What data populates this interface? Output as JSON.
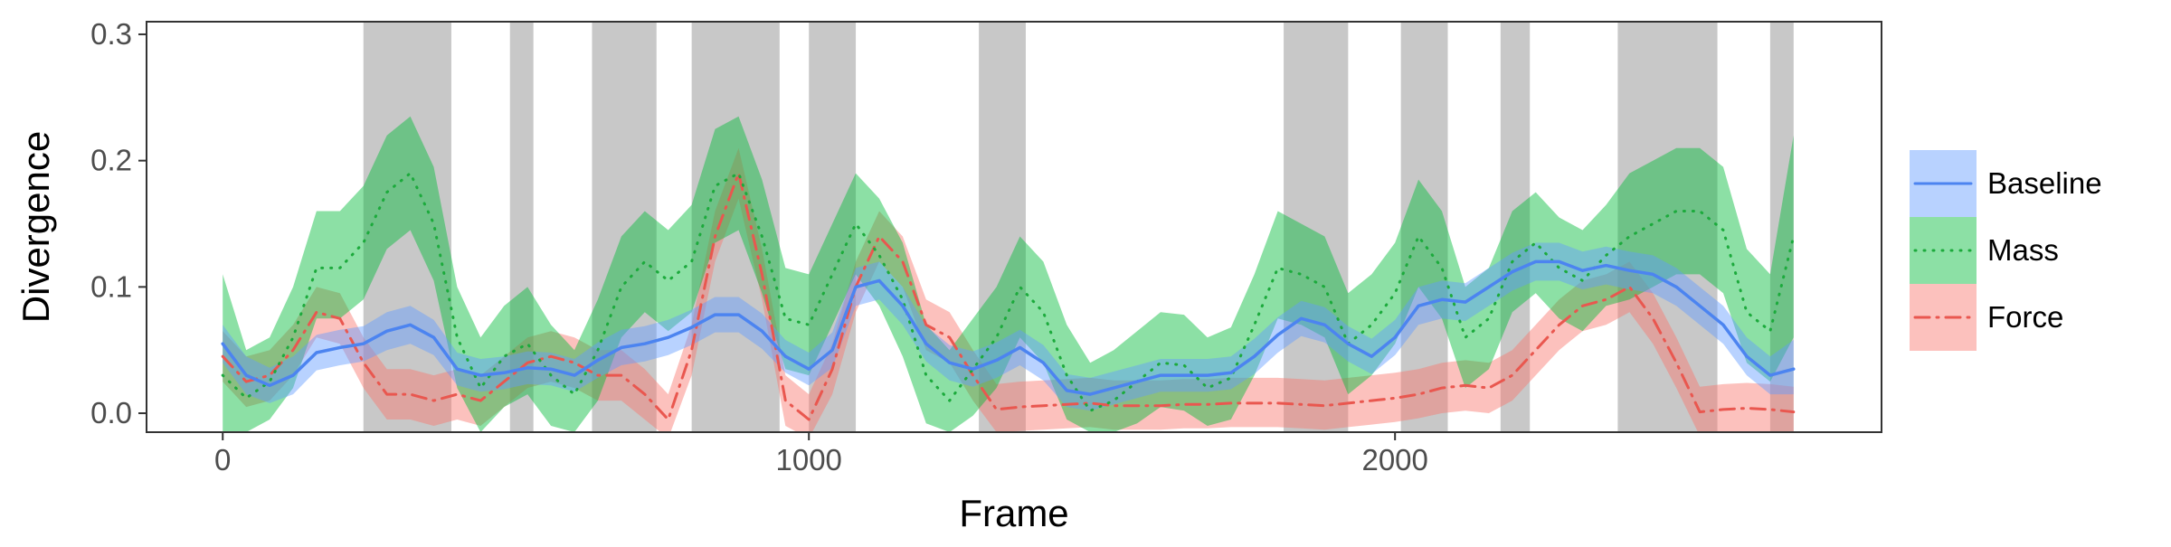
{
  "chart_data": {
    "type": "line",
    "title": "",
    "xlabel": "Frame",
    "ylabel": "Divergence",
    "xlim": [
      -130,
      2830
    ],
    "ylim": [
      -0.015,
      0.31
    ],
    "x_ticks": [
      0,
      1000,
      2000
    ],
    "x_tick_labels": [
      "0",
      "1000",
      "2000"
    ],
    "y_ticks": [
      0.0,
      0.1,
      0.2,
      0.3
    ],
    "y_tick_labels": [
      "0.0",
      "0.1",
      "0.2",
      "0.3"
    ],
    "grid": false,
    "legend_position": "right",
    "shaded_intervals": [
      [
        240,
        390
      ],
      [
        490,
        530
      ],
      [
        630,
        740
      ],
      [
        800,
        950
      ],
      [
        1000,
        1080
      ],
      [
        1290,
        1370
      ],
      [
        1810,
        1920
      ],
      [
        2010,
        2090
      ],
      [
        2180,
        2230
      ],
      [
        2380,
        2550
      ],
      [
        2640,
        2680
      ]
    ],
    "x": [
      0,
      40,
      80,
      120,
      160,
      200,
      240,
      280,
      320,
      360,
      400,
      440,
      480,
      520,
      560,
      600,
      640,
      680,
      720,
      760,
      800,
      840,
      880,
      920,
      960,
      1000,
      1040,
      1080,
      1120,
      1160,
      1200,
      1240,
      1280,
      1320,
      1360,
      1400,
      1440,
      1480,
      1520,
      1560,
      1600,
      1640,
      1680,
      1720,
      1760,
      1800,
      1840,
      1880,
      1920,
      1960,
      2000,
      2040,
      2080,
      2120,
      2160,
      2200,
      2240,
      2280,
      2320,
      2360,
      2400,
      2440,
      2480,
      2520,
      2560,
      2600,
      2640,
      2680
    ],
    "series": [
      {
        "name": "Baseline",
        "color": "#619CFF",
        "line_color": "#4C84F0",
        "dash": "solid",
        "values": [
          0.055,
          0.03,
          0.022,
          0.03,
          0.048,
          0.052,
          0.055,
          0.065,
          0.07,
          0.06,
          0.035,
          0.03,
          0.032,
          0.036,
          0.035,
          0.03,
          0.042,
          0.052,
          0.055,
          0.06,
          0.068,
          0.078,
          0.078,
          0.065,
          0.045,
          0.035,
          0.05,
          0.1,
          0.105,
          0.085,
          0.055,
          0.04,
          0.035,
          0.042,
          0.052,
          0.04,
          0.018,
          0.015,
          0.02,
          0.025,
          0.03,
          0.03,
          0.03,
          0.032,
          0.045,
          0.062,
          0.075,
          0.07,
          0.055,
          0.045,
          0.06,
          0.085,
          0.09,
          0.088,
          0.1,
          0.112,
          0.12,
          0.12,
          0.113,
          0.117,
          0.113,
          0.11,
          0.1,
          0.085,
          0.07,
          0.045,
          0.03,
          0.035
        ],
        "lower": [
          0.04,
          0.015,
          0.008,
          0.015,
          0.034,
          0.038,
          0.041,
          0.05,
          0.055,
          0.046,
          0.022,
          0.017,
          0.019,
          0.023,
          0.022,
          0.017,
          0.028,
          0.038,
          0.041,
          0.046,
          0.054,
          0.064,
          0.064,
          0.051,
          0.032,
          0.022,
          0.036,
          0.085,
          0.09,
          0.07,
          0.041,
          0.026,
          0.021,
          0.028,
          0.038,
          0.026,
          0.005,
          0.002,
          0.007,
          0.012,
          0.017,
          0.017,
          0.017,
          0.019,
          0.031,
          0.048,
          0.061,
          0.056,
          0.041,
          0.031,
          0.046,
          0.07,
          0.075,
          0.073,
          0.085,
          0.097,
          0.105,
          0.105,
          0.098,
          0.102,
          0.098,
          0.095,
          0.085,
          0.07,
          0.055,
          0.03,
          0.015,
          0.015
        ],
        "upper": [
          0.07,
          0.045,
          0.036,
          0.045,
          0.062,
          0.066,
          0.069,
          0.08,
          0.085,
          0.074,
          0.048,
          0.043,
          0.045,
          0.049,
          0.048,
          0.043,
          0.056,
          0.066,
          0.069,
          0.074,
          0.082,
          0.092,
          0.092,
          0.079,
          0.058,
          0.048,
          0.064,
          0.115,
          0.12,
          0.1,
          0.069,
          0.054,
          0.049,
          0.056,
          0.066,
          0.054,
          0.031,
          0.028,
          0.033,
          0.038,
          0.043,
          0.043,
          0.043,
          0.045,
          0.059,
          0.076,
          0.089,
          0.084,
          0.069,
          0.059,
          0.074,
          0.1,
          0.105,
          0.103,
          0.115,
          0.127,
          0.135,
          0.135,
          0.128,
          0.132,
          0.128,
          0.125,
          0.115,
          0.1,
          0.085,
          0.06,
          0.045,
          0.058
        ]
      },
      {
        "name": "Mass",
        "color": "#00BA38",
        "line_color": "#1CAA3C",
        "dash": "dotted",
        "values": [
          0.03,
          0.012,
          0.025,
          0.06,
          0.115,
          0.115,
          0.135,
          0.175,
          0.19,
          0.15,
          0.06,
          0.02,
          0.045,
          0.055,
          0.03,
          0.015,
          0.05,
          0.1,
          0.12,
          0.105,
          0.12,
          0.18,
          0.19,
          0.14,
          0.075,
          0.07,
          0.11,
          0.15,
          0.125,
          0.09,
          0.03,
          0.01,
          0.035,
          0.06,
          0.1,
          0.08,
          0.03,
          0.002,
          0.01,
          0.025,
          0.04,
          0.038,
          0.02,
          0.028,
          0.07,
          0.115,
          0.11,
          0.1,
          0.055,
          0.07,
          0.095,
          0.14,
          0.115,
          0.06,
          0.075,
          0.12,
          0.135,
          0.115,
          0.105,
          0.125,
          0.14,
          0.15,
          0.16,
          0.16,
          0.145,
          0.08,
          0.065,
          0.14
        ],
        "lower": [
          -0.02,
          -0.015,
          -0.005,
          0.02,
          0.075,
          0.075,
          0.09,
          0.13,
          0.145,
          0.105,
          0.02,
          -0.015,
          0.005,
          0.015,
          -0.01,
          -0.015,
          0.01,
          0.06,
          0.08,
          0.065,
          0.08,
          0.135,
          0.145,
          0.095,
          0.035,
          0.03,
          0.07,
          0.11,
          0.085,
          0.045,
          -0.008,
          -0.015,
          -0.002,
          0.02,
          0.06,
          0.04,
          -0.005,
          -0.015,
          -0.015,
          -0.008,
          0.005,
          0.002,
          -0.01,
          -0.005,
          0.03,
          0.075,
          0.07,
          0.06,
          0.015,
          0.03,
          0.055,
          0.1,
          0.075,
          0.02,
          0.035,
          0.08,
          0.095,
          0.075,
          0.065,
          0.085,
          0.09,
          0.1,
          0.11,
          0.11,
          0.095,
          0.04,
          0.025,
          0.06
        ],
        "upper": [
          0.11,
          0.05,
          0.06,
          0.1,
          0.16,
          0.16,
          0.18,
          0.22,
          0.235,
          0.195,
          0.1,
          0.06,
          0.085,
          0.1,
          0.07,
          0.05,
          0.09,
          0.14,
          0.16,
          0.145,
          0.165,
          0.225,
          0.235,
          0.185,
          0.115,
          0.11,
          0.15,
          0.19,
          0.17,
          0.135,
          0.07,
          0.05,
          0.075,
          0.1,
          0.14,
          0.12,
          0.07,
          0.04,
          0.05,
          0.065,
          0.08,
          0.078,
          0.06,
          0.068,
          0.11,
          0.16,
          0.15,
          0.14,
          0.095,
          0.11,
          0.135,
          0.185,
          0.16,
          0.1,
          0.115,
          0.16,
          0.175,
          0.155,
          0.145,
          0.165,
          0.19,
          0.2,
          0.21,
          0.21,
          0.195,
          0.13,
          0.11,
          0.22
        ]
      },
      {
        "name": "Force",
        "color": "#F8766D",
        "line_color": "#E9574F",
        "dash": "dashdot",
        "values": [
          0.045,
          0.025,
          0.03,
          0.05,
          0.08,
          0.075,
          0.04,
          0.015,
          0.015,
          0.01,
          0.015,
          0.01,
          0.025,
          0.04,
          0.045,
          0.04,
          0.03,
          0.03,
          0.015,
          -0.005,
          0.05,
          0.14,
          0.19,
          0.11,
          0.01,
          -0.005,
          0.035,
          0.1,
          0.14,
          0.12,
          0.07,
          0.06,
          0.03,
          0.003,
          0.005,
          0.006,
          0.007,
          0.008,
          0.006,
          0.006,
          0.006,
          0.007,
          0.007,
          0.008,
          0.008,
          0.008,
          0.007,
          0.006,
          0.008,
          0.01,
          0.012,
          0.015,
          0.02,
          0.022,
          0.02,
          0.03,
          0.05,
          0.07,
          0.085,
          0.09,
          0.1,
          0.075,
          0.04,
          0.001,
          0.003,
          0.004,
          0.003,
          0.001
        ],
        "lower": [
          0.025,
          0.005,
          0.01,
          0.03,
          0.06,
          0.055,
          0.02,
          -0.005,
          -0.005,
          -0.01,
          -0.005,
          -0.01,
          0.005,
          0.02,
          0.025,
          0.02,
          0.01,
          0.01,
          -0.005,
          -0.02,
          0.03,
          0.12,
          0.17,
          0.09,
          -0.01,
          -0.02,
          0.015,
          0.08,
          0.12,
          0.1,
          0.05,
          0.04,
          0.01,
          -0.015,
          -0.014,
          -0.013,
          -0.012,
          -0.011,
          -0.013,
          -0.013,
          -0.013,
          -0.012,
          -0.012,
          -0.011,
          -0.011,
          -0.011,
          -0.012,
          -0.013,
          -0.011,
          -0.009,
          -0.007,
          -0.004,
          0.0,
          0.002,
          0.0,
          0.01,
          0.03,
          0.05,
          0.065,
          0.07,
          0.08,
          0.055,
          0.02,
          -0.018,
          -0.016,
          -0.015,
          -0.016,
          -0.018
        ],
        "upper": [
          0.065,
          0.045,
          0.05,
          0.07,
          0.1,
          0.095,
          0.06,
          0.035,
          0.035,
          0.03,
          0.035,
          0.03,
          0.045,
          0.06,
          0.065,
          0.06,
          0.05,
          0.05,
          0.035,
          0.015,
          0.07,
          0.16,
          0.21,
          0.13,
          0.03,
          0.015,
          0.055,
          0.12,
          0.16,
          0.14,
          0.09,
          0.08,
          0.05,
          0.023,
          0.025,
          0.026,
          0.027,
          0.028,
          0.026,
          0.026,
          0.026,
          0.027,
          0.027,
          0.028,
          0.028,
          0.028,
          0.027,
          0.026,
          0.028,
          0.03,
          0.032,
          0.035,
          0.04,
          0.042,
          0.04,
          0.05,
          0.07,
          0.09,
          0.105,
          0.11,
          0.12,
          0.095,
          0.06,
          0.021,
          0.023,
          0.024,
          0.023,
          0.021
        ]
      }
    ]
  }
}
